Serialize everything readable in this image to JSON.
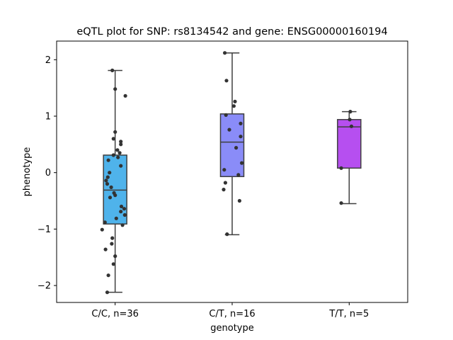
{
  "chart_data": {
    "type": "box",
    "title": "eQTL plot for SNP: rs8134542 and gene: ENSG00000160194",
    "xlabel": "genotype",
    "ylabel": "phenotype",
    "ylim": [
      -2.3,
      2.33
    ],
    "yticks": [
      -2,
      -1,
      0,
      1,
      2
    ],
    "yticklabels": [
      "−2",
      "−1",
      "0",
      "1",
      "2"
    ],
    "grid": false,
    "categories": [
      "C/C, n=36",
      "C/T, n=16",
      "T/T, n=5"
    ],
    "colors": [
      "#4fb3eb",
      "#8a8cf8",
      "#b64ff0"
    ],
    "boxes": [
      {
        "whisker_low": -2.12,
        "q1": -0.91,
        "median": -0.31,
        "q3": 0.31,
        "whisker_high": 1.81
      },
      {
        "whisker_low": -1.1,
        "q1": -0.07,
        "median": 0.54,
        "q3": 1.04,
        "whisker_high": 2.12
      },
      {
        "whisker_low": -0.55,
        "q1": 0.08,
        "median": 0.81,
        "q3": 0.94,
        "whisker_high": 1.08
      }
    ],
    "points": [
      [
        -2.12,
        -1.82,
        -1.62,
        -1.48,
        -1.36,
        -1.26,
        -1.16,
        -1.01,
        -0.93,
        -0.88,
        -0.81,
        -0.75,
        -0.69,
        -0.64,
        -0.6,
        -0.44,
        -0.4,
        -0.36,
        -0.26,
        -0.2,
        -0.14,
        -0.08,
        0.0,
        0.12,
        0.22,
        0.27,
        0.31,
        0.35,
        0.4,
        0.5,
        0.55,
        0.6,
        0.72,
        1.36,
        1.48,
        1.81
      ],
      [
        -1.09,
        -0.5,
        -0.3,
        -0.18,
        -0.04,
        0.05,
        0.17,
        0.44,
        0.64,
        0.76,
        0.87,
        1.02,
        1.18,
        1.26,
        1.63,
        2.12
      ],
      [
        -0.54,
        0.08,
        0.82,
        0.94,
        1.08
      ]
    ],
    "jitter": [
      [
        -0.14,
        -0.12,
        -0.03,
        0.0,
        -0.17,
        -0.06,
        -0.05,
        -0.23,
        0.13,
        -0.18,
        0.02,
        0.17,
        0.1,
        0.16,
        0.11,
        -0.09,
        0.0,
        -0.02,
        -0.07,
        -0.14,
        -0.16,
        -0.13,
        -0.1,
        0.1,
        -0.12,
        0.05,
        -0.03,
        0.08,
        0.04,
        0.1,
        0.1,
        -0.03,
        0.0,
        0.18,
        0.0,
        -0.05
      ],
      [
        -0.09,
        0.13,
        -0.15,
        -0.12,
        0.11,
        -0.14,
        0.17,
        0.07,
        0.15,
        -0.05,
        0.15,
        -0.11,
        0.03,
        0.05,
        -0.1,
        -0.13
      ],
      [
        -0.14,
        -0.14,
        0.04,
        0.01,
        0.02
      ]
    ]
  }
}
